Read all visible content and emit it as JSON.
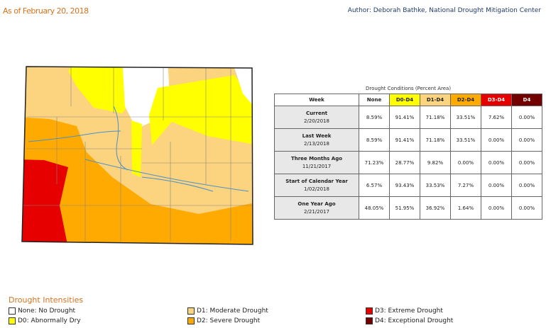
{
  "header": {
    "date": "As of February 20, 2018",
    "author": "Author: Deborah Bathke, National Drought Mitigation Center"
  },
  "table": {
    "title": "Drought Conditions (Percent Area)",
    "columns": [
      {
        "label": "Week",
        "color": "#ffffff"
      },
      {
        "label": "None",
        "color": "#ffffff"
      },
      {
        "label": "D0-D4",
        "color": "#ffff00"
      },
      {
        "label": "D1-D4",
        "color": "#fcd37f"
      },
      {
        "label": "D2-D4",
        "color": "#ffaa00"
      },
      {
        "label": "D3-D4",
        "color": "#e60000"
      },
      {
        "label": "D4",
        "color": "#730000"
      }
    ],
    "rows": [
      {
        "week": "Current",
        "date": "2/20/2018",
        "values": [
          "8.59%",
          "91.41%",
          "71.18%",
          "33.51%",
          "7.62%",
          "0.00%"
        ]
      },
      {
        "week": "Last Week",
        "date": "2/13/2018",
        "values": [
          "8.59%",
          "91.41%",
          "71.18%",
          "33.51%",
          "0.00%",
          "0.00%"
        ]
      },
      {
        "week": "Three Months Ago",
        "date": "11/21/2017",
        "values": [
          "71.23%",
          "28.77%",
          "9.82%",
          "0.00%",
          "0.00%",
          "0.00%"
        ]
      },
      {
        "week": "Start of Calendar Year",
        "date": "1/02/2018",
        "values": [
          "6.57%",
          "93.43%",
          "33.53%",
          "7.27%",
          "0.00%",
          "0.00%"
        ]
      },
      {
        "week": "One Year Ago",
        "date": "2/21/2017",
        "values": [
          "48.05%",
          "51.95%",
          "36.92%",
          "1.64%",
          "0.00%",
          "0.00%"
        ]
      }
    ]
  },
  "legend": {
    "title": "Drought Intensities",
    "items": [
      {
        "label": "None: No Drought",
        "color": "#ffffff"
      },
      {
        "label": "D0: Abnormally Dry",
        "color": "#ffff00"
      },
      {
        "label": "D1: Moderate Drought",
        "color": "#fcd37f"
      },
      {
        "label": "D2: Severe Drought",
        "color": "#ffaa00"
      },
      {
        "label": "D3: Extreme Drought",
        "color": "#e60000"
      },
      {
        "label": "D4: Exceptional Drought",
        "color": "#730000"
      }
    ]
  }
}
